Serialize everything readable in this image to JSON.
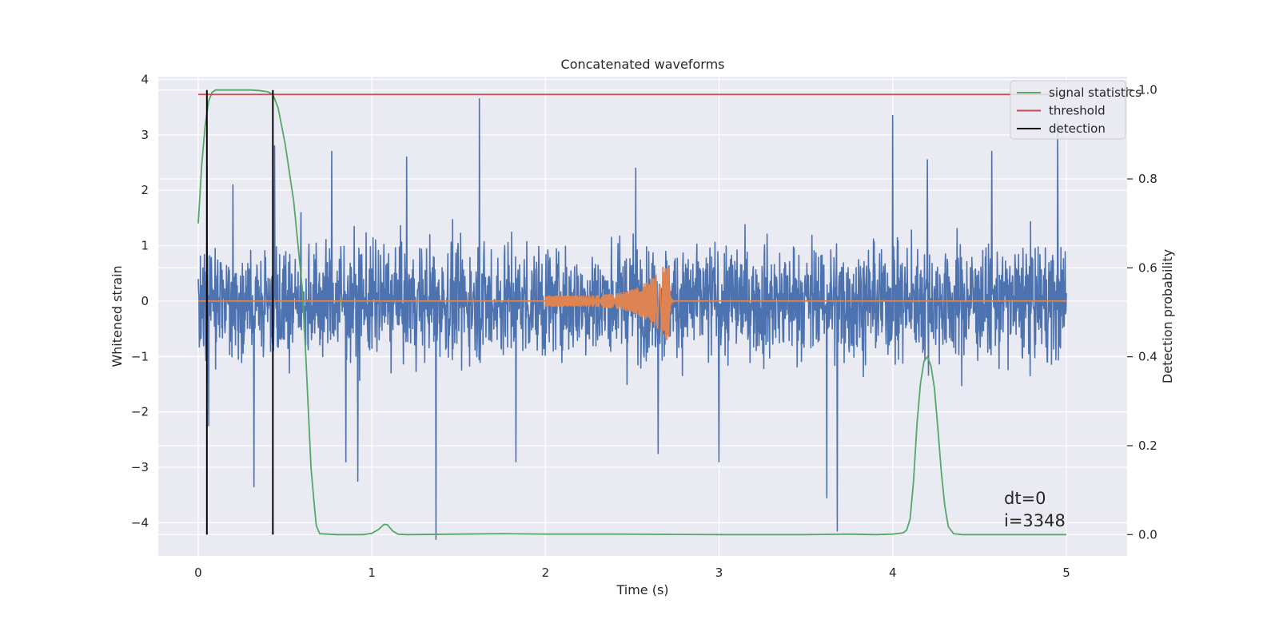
{
  "chart_data": {
    "type": "line",
    "title": "Concatenated waveforms",
    "xlabel": "Time (s)",
    "ylabel": "Whitened strain",
    "y2label": "Detection probability",
    "xlim": [
      -0.23,
      5.35
    ],
    "ylim": [
      -4.6,
      4.05
    ],
    "y2lim": [
      -0.048,
      1.03
    ],
    "xticks": [
      0,
      1,
      2,
      3,
      4,
      5
    ],
    "yticks": [
      -4,
      -3,
      -2,
      -1,
      0,
      1,
      2,
      3,
      4
    ],
    "y2ticks": [
      0.0,
      0.2,
      0.4,
      0.6,
      0.8,
      1.0
    ],
    "y2ticklabels": [
      "0.0",
      "0.2",
      "0.4",
      "0.6",
      "0.8",
      "1.0"
    ],
    "grid": true,
    "legend_position": "top-right",
    "colors": {
      "background": "#eaeaf2",
      "grid": "#ffffff",
      "strain": "#4c72b0",
      "template": "#dd8452",
      "signal_statistics": "#55a868",
      "threshold": "#c44e52",
      "detection": "#000000"
    },
    "series": [
      {
        "key": "strain",
        "axis": "left",
        "description": "whitened strain noise, spans 0 to 5 s, typically within about ±2, extremes near +3.6 and -4.3",
        "range": [
          0,
          5
        ],
        "spikes": [
          {
            "x": 0.05,
            "y": 2.4
          },
          {
            "x": 0.06,
            "y": -2.25
          },
          {
            "x": 0.2,
            "y": 2.1
          },
          {
            "x": 0.32,
            "y": -3.35
          },
          {
            "x": 0.44,
            "y": 2.8
          },
          {
            "x": 0.77,
            "y": 2.7
          },
          {
            "x": 0.85,
            "y": -2.9
          },
          {
            "x": 0.92,
            "y": -3.25
          },
          {
            "x": 1.2,
            "y": 2.6
          },
          {
            "x": 1.37,
            "y": -4.3
          },
          {
            "x": 1.62,
            "y": 3.65
          },
          {
            "x": 1.83,
            "y": -2.9
          },
          {
            "x": 2.52,
            "y": 2.4
          },
          {
            "x": 2.65,
            "y": -2.75
          },
          {
            "x": 3.0,
            "y": -2.9
          },
          {
            "x": 3.62,
            "y": -3.55
          },
          {
            "x": 3.68,
            "y": -4.15
          },
          {
            "x": 4.0,
            "y": 3.35
          },
          {
            "x": 4.2,
            "y": 2.55
          },
          {
            "x": 4.57,
            "y": 2.7
          },
          {
            "x": 4.95,
            "y": 3.25
          }
        ]
      },
      {
        "key": "template",
        "axis": "left",
        "description": "chirp injection: zero except 2.0 to 2.72 s, amplitude grows from about 0.1 to 0.78, ringdown after 2.72 s",
        "chirp_start": 2.0,
        "chirp_merger": 2.71,
        "start_amplitude": 0.1,
        "peak_amplitude": 0.78
      },
      {
        "key": "signal_statistics",
        "name": "signal statistics",
        "axis": "right",
        "x": [
          0.0,
          0.02,
          0.04,
          0.06,
          0.08,
          0.1,
          0.15,
          0.2,
          0.25,
          0.3,
          0.35,
          0.4,
          0.43,
          0.46,
          0.5,
          0.55,
          0.6,
          0.62,
          0.65,
          0.67,
          0.68,
          0.7,
          0.8,
          0.95,
          1.0,
          1.04,
          1.07,
          1.09,
          1.12,
          1.15,
          1.2,
          1.5,
          1.75,
          2.0,
          2.4,
          3.0,
          3.5,
          3.75,
          3.9,
          4.0,
          4.06,
          4.08,
          4.1,
          4.12,
          4.14,
          4.16,
          4.18,
          4.2,
          4.22,
          4.24,
          4.26,
          4.28,
          4.3,
          4.32,
          4.35,
          4.4,
          5.0
        ],
        "y": [
          0.7,
          0.83,
          0.92,
          0.975,
          0.995,
          1.0,
          1.0,
          1.0,
          1.0,
          1.0,
          0.999,
          0.996,
          0.99,
          0.96,
          0.88,
          0.75,
          0.55,
          0.4,
          0.15,
          0.06,
          0.02,
          0.002,
          0.0,
          0.0,
          0.003,
          0.012,
          0.023,
          0.022,
          0.008,
          0.001,
          0.0,
          0.001,
          0.002,
          0.001,
          0.001,
          0.0,
          0.0,
          0.001,
          0.0,
          0.001,
          0.004,
          0.01,
          0.035,
          0.12,
          0.25,
          0.34,
          0.39,
          0.4,
          0.38,
          0.33,
          0.24,
          0.14,
          0.065,
          0.018,
          0.002,
          0.0,
          0.0
        ]
      },
      {
        "key": "threshold",
        "name": "threshold",
        "axis": "right",
        "x": [
          0,
          5
        ],
        "y": [
          0.99,
          0.99
        ]
      },
      {
        "key": "detection",
        "name": "detection",
        "axis": "right",
        "vlines": [
          0.05,
          0.43
        ],
        "ymin": 0.0,
        "ymax": 1.0
      }
    ],
    "annotations": [
      "dt=0",
      "i=3348"
    ]
  }
}
